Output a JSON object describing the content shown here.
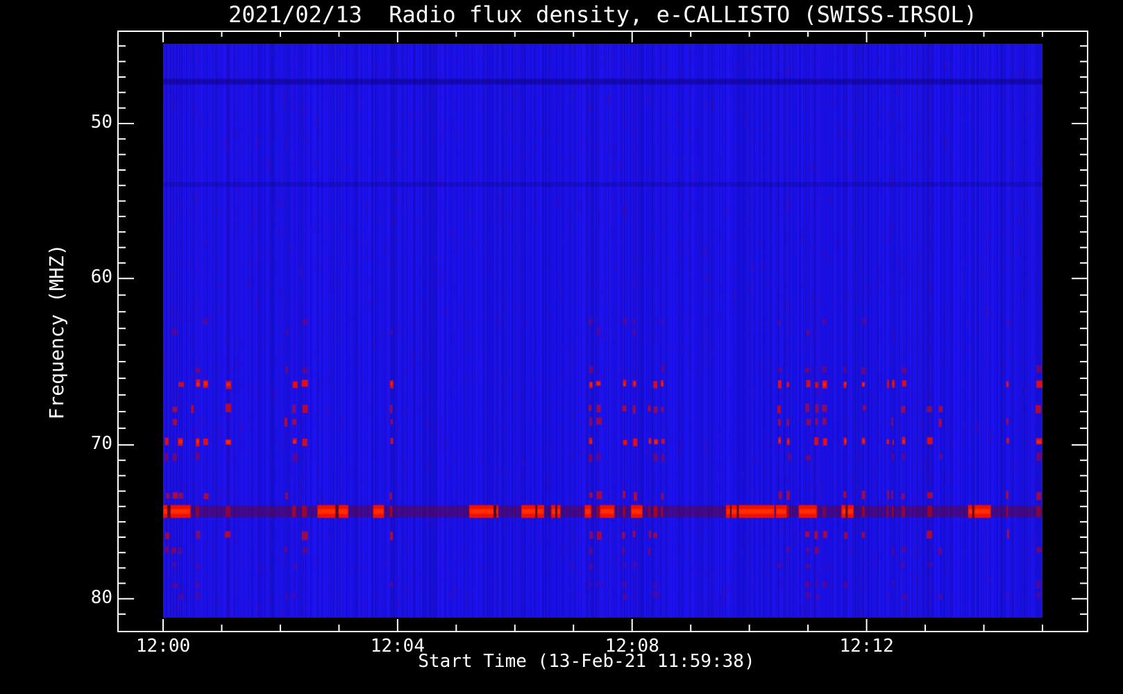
{
  "page": {
    "background": "#000000"
  },
  "chart_data": {
    "type": "heatmap",
    "variant": "radio-spectrogram",
    "title": "2021/02/13  Radio flux density, e-CALLISTO (SWISS-IRSOL)",
    "xlabel": "Start Time (13-Feb-21 11:59:38)",
    "ylabel": "Frequency (MHZ)",
    "legend": false,
    "grid": false,
    "x_axis": {
      "minutes_span": 15,
      "minor_tick_every_min": 1,
      "end_tick_t_min": 15,
      "major_ticks": [
        {
          "label": "12:00",
          "t_min": 0
        },
        {
          "label": "12:04",
          "t_min": 4
        },
        {
          "label": "12:08",
          "t_min": 8
        },
        {
          "label": "12:12",
          "t_min": 12
        }
      ]
    },
    "y_axis": {
      "unit": "MHz",
      "approx_range_mhz": [
        45,
        81
      ],
      "minor_per_major": 10,
      "major_ticks": [
        {
          "label": "50",
          "fy": 0.139
        },
        {
          "label": "60",
          "fy": 0.409
        },
        {
          "label": "70",
          "fy": 0.699
        },
        {
          "label": "80",
          "fy": 0.967
        }
      ]
    },
    "colors": {
      "page_bg": "#000000",
      "axis": "#ffffff",
      "text": "#ffffff",
      "background_blue": "#1c12f0",
      "rfi_vfaint": "#a00046",
      "rfi_faint": "#b40028",
      "rfi_medium": "#d20f14",
      "rfi_bright": "#f01000",
      "burst_hot": "#ff2d00",
      "band_base": "#780008"
    },
    "dark_band_fy": 0.066,
    "rfi_rows": [
      {
        "freq_mhz": 62.6,
        "fy": 0.485,
        "intensity": "vfaint"
      },
      {
        "freq_mhz": 63.2,
        "fy": 0.502,
        "intensity": "vfaint"
      },
      {
        "freq_mhz": 65.5,
        "fy": 0.568,
        "intensity": "faint"
      },
      {
        "freq_mhz": 66.3,
        "fy": 0.593,
        "intensity": "bright"
      },
      {
        "freq_mhz": 67.8,
        "fy": 0.636,
        "intensity": "medium"
      },
      {
        "freq_mhz": 68.6,
        "fy": 0.659,
        "intensity": "medium"
      },
      {
        "freq_mhz": 69.8,
        "fy": 0.693,
        "intensity": "bright"
      },
      {
        "freq_mhz": 70.8,
        "fy": 0.72,
        "intensity": "faint"
      },
      {
        "freq_mhz": 73.3,
        "fy": 0.787,
        "intensity": "medium"
      },
      {
        "freq_mhz": 75.9,
        "fy": 0.856,
        "intensity": "medium"
      },
      {
        "freq_mhz": 76.9,
        "fy": 0.883,
        "intensity": "faint"
      },
      {
        "freq_mhz": 77.9,
        "fy": 0.909,
        "intensity": "vfaint"
      },
      {
        "freq_mhz": 79.1,
        "fy": 0.943,
        "intensity": "vfaint"
      },
      {
        "freq_mhz": 80.6,
        "fy": 0.962,
        "intensity": "vfaint"
      }
    ],
    "strong_band": {
      "freq_mhz": 74.3,
      "fy": 0.815,
      "height_frac": 0.02,
      "active_segments_min": [
        [
          0.0,
          0.47
        ],
        [
          2.63,
          3.16
        ],
        [
          3.58,
          3.77
        ],
        [
          5.22,
          5.72
        ],
        [
          6.11,
          6.5
        ],
        [
          6.62,
          6.78
        ],
        [
          7.19,
          7.3
        ],
        [
          7.45,
          7.7
        ],
        [
          7.98,
          8.18
        ],
        [
          9.6,
          10.43
        ],
        [
          10.45,
          10.64
        ],
        [
          10.84,
          11.15
        ],
        [
          11.57,
          11.78
        ],
        [
          13.73,
          14.12
        ]
      ]
    }
  }
}
